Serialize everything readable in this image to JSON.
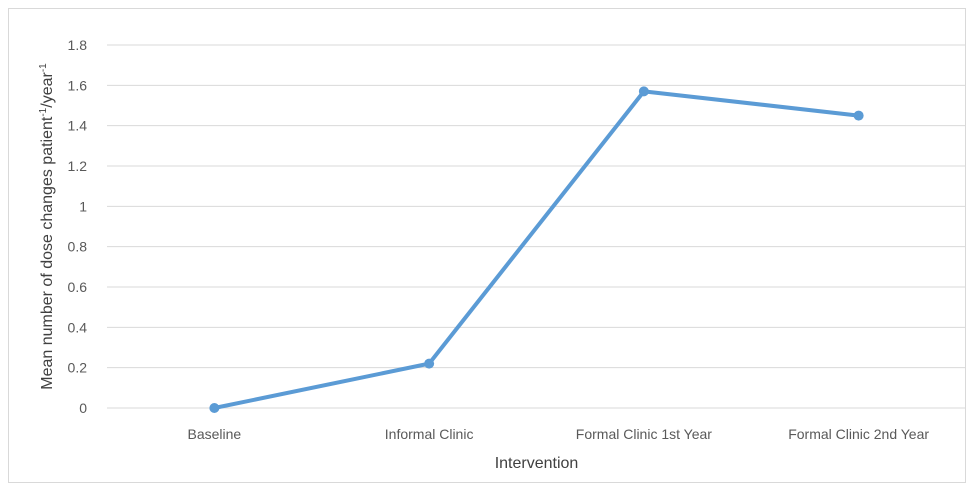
{
  "chart_data": {
    "type": "line",
    "categories": [
      "Baseline",
      "Informal Clinic",
      "Formal Clinic 1st Year",
      "Formal Clinic 2nd Year"
    ],
    "series": [
      {
        "values": [
          0,
          0.22,
          1.57,
          1.45
        ],
        "color": "#5b9bd5"
      }
    ],
    "xlabel": "Intervention",
    "ylabel": {
      "base": "Mean number of dose changes patient",
      "sup1": "-1",
      "mid": "/year",
      "sup2": "-1"
    },
    "ylim": [
      0,
      1.8
    ],
    "yticks": [
      "0",
      "0.2",
      "0.4",
      "0.6",
      "0.8",
      "1",
      "1.2",
      "1.4",
      "1.6",
      "1.8"
    ],
    "grid": true,
    "gridline_color": "#d9d9d9",
    "legend": "none"
  }
}
